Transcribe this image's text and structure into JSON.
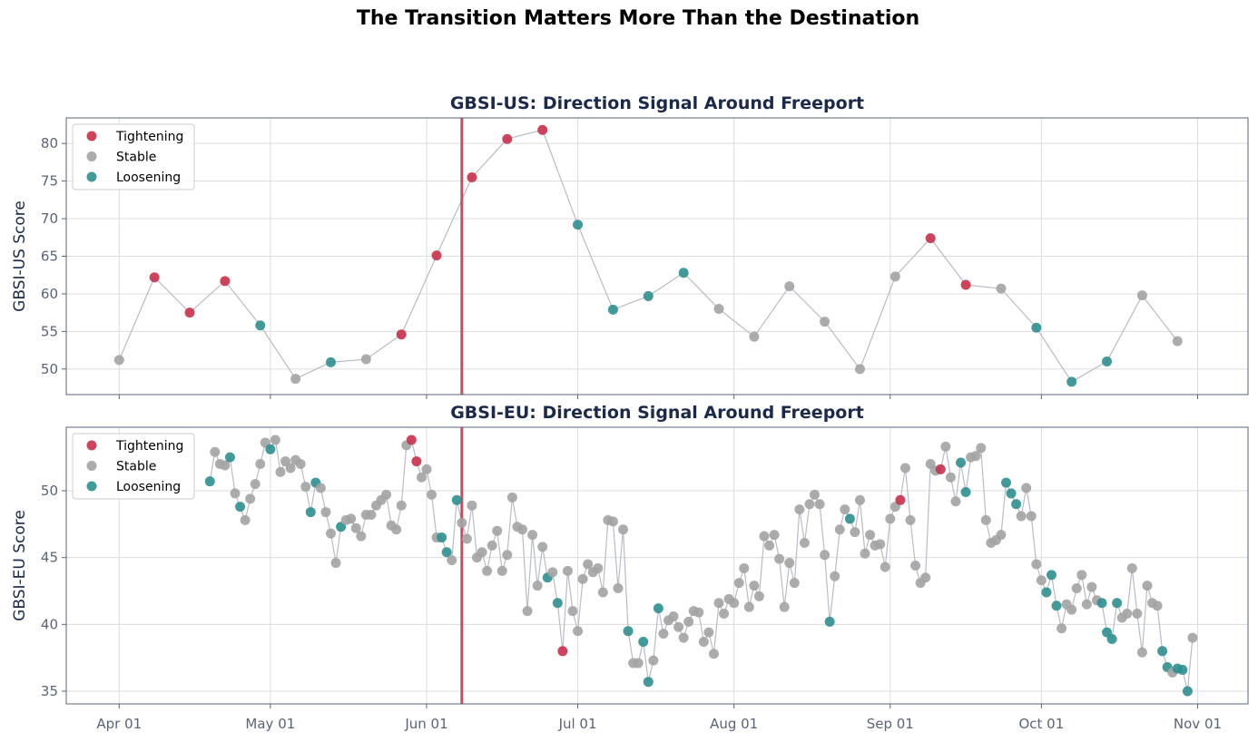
{
  "suptitle": "The Transition Matters More Than the Destination",
  "colors": {
    "Tightening": "#c8304a",
    "Stable": "#a3a3a3",
    "Loosening": "#2f8f8f",
    "line": "#b7bcc6",
    "event_line": "#cc4a5e",
    "title": "#1b2a4a"
  },
  "legend": [
    {
      "code": "T",
      "label": "Tightening"
    },
    {
      "code": "S",
      "label": "Stable"
    },
    {
      "code": "L",
      "label": "Loosening"
    }
  ],
  "x_ticks": [
    "Apr 01",
    "May 01",
    "Jun 01",
    "Jul 01",
    "Aug 01",
    "Sep 01",
    "Oct 01",
    "Nov 01"
  ],
  "event_date": "06-08",
  "chart_data": [
    {
      "type": "scatter",
      "title": "GBSI-US: Direction Signal Around Freeport",
      "ylabel": "GBSI-US Score",
      "xlabel": "",
      "ylim": [
        46.6,
        83.4
      ],
      "y_ticks": [
        50,
        55,
        60,
        65,
        70,
        75,
        80
      ],
      "grid": true,
      "legend_position": "top-left",
      "x": [
        "04-01",
        "04-08",
        "04-15",
        "04-22",
        "04-29",
        "05-06",
        "05-13",
        "05-20",
        "05-27",
        "06-03",
        "06-10",
        "06-17",
        "06-24",
        "07-01",
        "07-08",
        "07-15",
        "07-22",
        "07-29",
        "08-05",
        "08-12",
        "08-19",
        "08-26",
        "09-02",
        "09-09",
        "09-16",
        "09-23",
        "09-30",
        "10-07",
        "10-14",
        "10-21",
        "10-28"
      ],
      "y": [
        51.2,
        62.2,
        57.5,
        61.7,
        55.8,
        48.7,
        50.9,
        51.3,
        54.6,
        65.1,
        75.5,
        80.6,
        81.8,
        69.2,
        57.9,
        59.7,
        62.8,
        58.0,
        54.3,
        61.0,
        56.3,
        50.0,
        62.3,
        67.4,
        61.2,
        60.7,
        55.5,
        48.3,
        51.0,
        59.8,
        53.7
      ],
      "signal": [
        "S",
        "T",
        "T",
        "T",
        "L",
        "S",
        "L",
        "S",
        "T",
        "T",
        "T",
        "T",
        "T",
        "L",
        "L",
        "L",
        "L",
        "S",
        "S",
        "S",
        "S",
        "S",
        "S",
        "T",
        "T",
        "S",
        "L",
        "L",
        "L",
        "S",
        "S"
      ]
    },
    {
      "type": "scatter",
      "title": "GBSI-EU: Direction Signal Around Freeport",
      "ylabel": "GBSI-EU Score",
      "xlabel": "",
      "ylim": [
        34.05,
        54.75
      ],
      "y_ticks": [
        35,
        40,
        45,
        50
      ],
      "grid": true,
      "legend_position": "top-left",
      "x_range": [
        "04-19",
        "10-31"
      ],
      "y": [
        50.7,
        52.9,
        52.0,
        51.9,
        52.5,
        49.8,
        48.8,
        47.8,
        49.4,
        50.5,
        52.0,
        53.6,
        53.1,
        53.8,
        51.4,
        52.2,
        51.7,
        52.3,
        52.0,
        50.3,
        48.4,
        50.6,
        50.2,
        48.4,
        46.8,
        44.6,
        47.3,
        47.8,
        47.9,
        47.2,
        46.6,
        48.2,
        48.2,
        48.9,
        49.3,
        49.7,
        47.4,
        47.1,
        48.9,
        53.4,
        53.8,
        52.2,
        51.0,
        51.6,
        49.7,
        46.5,
        46.5,
        45.4,
        44.8,
        49.3,
        47.6,
        46.4,
        48.9,
        45.0,
        45.4,
        44.0,
        45.9,
        47.0,
        44.0,
        45.2,
        49.5,
        47.3,
        47.1,
        41.0,
        46.7,
        42.9,
        45.8,
        43.5,
        43.9,
        41.6,
        38.0,
        44.0,
        41.0,
        39.5,
        43.4,
        44.5,
        43.9,
        44.2,
        42.4,
        47.8,
        47.7,
        42.7,
        47.1,
        39.5,
        37.1,
        37.1,
        38.7,
        35.7,
        37.3,
        41.2,
        39.3,
        40.3,
        40.6,
        39.8,
        39.0,
        40.2,
        41.0,
        40.9,
        38.7,
        39.4,
        37.8,
        41.6,
        40.8,
        41.9,
        41.6,
        43.1,
        44.2,
        41.3,
        42.9,
        42.1,
        46.6,
        45.9,
        46.7,
        44.9,
        41.3,
        44.6,
        43.1,
        48.6,
        46.1,
        49.0,
        49.7,
        49.0,
        45.2,
        40.2,
        43.6,
        47.1,
        48.6,
        47.9,
        46.9,
        49.3,
        45.3,
        46.7,
        45.9,
        46.0,
        44.3,
        47.9,
        48.8,
        49.3,
        51.7,
        47.8,
        44.4,
        43.1,
        43.5,
        52.0,
        51.5,
        51.6,
        53.3,
        51.0,
        49.2,
        52.1,
        49.9,
        52.5,
        52.6,
        53.2,
        47.8,
        46.1,
        46.3,
        46.7,
        50.6,
        49.8,
        49.0,
        48.1,
        50.2,
        48.1,
        44.5,
        43.3,
        42.4,
        43.7,
        41.4,
        39.7,
        41.5,
        41.1,
        42.7,
        43.7,
        41.5,
        42.8,
        41.8,
        41.6,
        39.4,
        38.9,
        41.6,
        40.5,
        40.8,
        44.2,
        40.8,
        37.9,
        42.9,
        41.6,
        41.4,
        38.0,
        36.8,
        36.4,
        36.7,
        36.6,
        35.0,
        39.0
      ],
      "signal": "LSSSLSLSSSSSLSSSSSSSLLSSSSLSSSSSSSSSSSSSTTSSSSLLSLSSSSSSSSSSSSSSSSSLSLTSSSSSSSSSSSSLSSLLSLSSSSSSSSSSSSSSSSSSSSSSSSSSSSSSSSSLSSSLSSSSSSSSSTSSSSSSSTSSSLLSSSSSSSLLLSSSSSLLLSSSSSSSSLLLLSSSSSSSSLLSLLL"
    }
  ]
}
